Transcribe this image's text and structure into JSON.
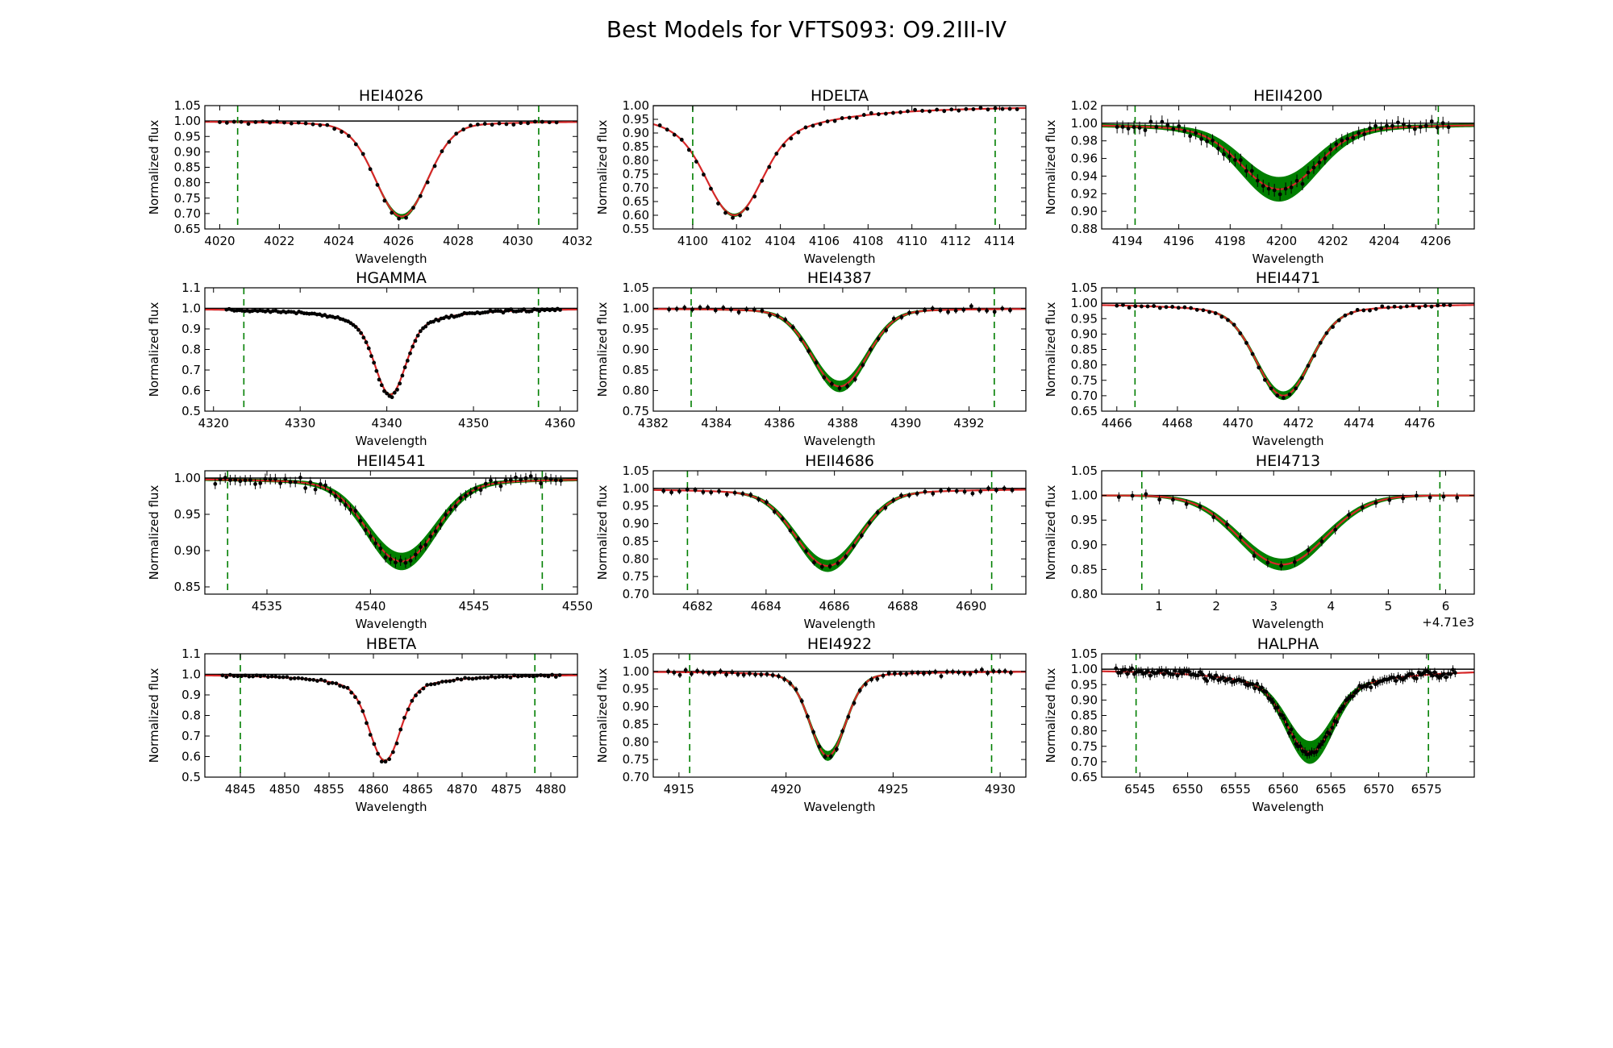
{
  "figure": {
    "title": "Best Models for VFTS093: O9.2III-IV"
  },
  "colors": {
    "model": "#d62728",
    "band": "#007f00",
    "obs": "#000000",
    "window": "#007f00",
    "continuum": "#000000"
  },
  "chart_data": [
    {
      "type": "line",
      "title": "HEI4026",
      "xlabel": "Wavelength",
      "ylabel": "Normalized flux",
      "xlim": [
        4019.5,
        4032
      ],
      "ylim": [
        0.65,
        1.05
      ],
      "xticks": [
        4020,
        4022,
        4024,
        4026,
        4028,
        4030,
        4032
      ],
      "yticks": [
        0.65,
        0.7,
        0.75,
        0.8,
        0.85,
        0.9,
        0.95,
        1.0,
        1.05
      ],
      "ytick_decimals": 2,
      "line_center": 4026.1,
      "depth": 0.31,
      "wing_depth": 0.02,
      "width": 0.85,
      "band_halfwidth": 0.006,
      "window": [
        4020.6,
        4030.7
      ],
      "obs_range": [
        4020,
        4031.3
      ],
      "n_obs": 48,
      "noise": 0.005
    },
    {
      "type": "line",
      "title": "HDELTA",
      "xlabel": "Wavelength",
      "ylabel": "Normalized flux",
      "xlim": [
        4098.2,
        4115.2
      ],
      "ylim": [
        0.55,
        1.0
      ],
      "xticks": [
        4100,
        4102,
        4104,
        4106,
        4108,
        4110,
        4112,
        4114
      ],
      "yticks": [
        0.55,
        0.6,
        0.65,
        0.7,
        0.75,
        0.8,
        0.85,
        0.9,
        0.95,
        1.0
      ],
      "ytick_decimals": 2,
      "line_center": 4101.9,
      "depth": 0.4,
      "wing_depth": 0.15,
      "width": 1.1,
      "band_halfwidth": 0.004,
      "window": [
        4100.0,
        4113.8
      ],
      "obs_range": [
        4098.5,
        4114.8
      ],
      "n_obs": 50,
      "noise": 0.006
    },
    {
      "type": "line",
      "title": "HEII4200",
      "xlabel": "Wavelength",
      "ylabel": "Normalized flux",
      "xlim": [
        4193,
        4207.5
      ],
      "ylim": [
        0.88,
        1.02
      ],
      "xticks": [
        4194,
        4196,
        4198,
        4200,
        4202,
        4204,
        4206
      ],
      "yticks": [
        0.88,
        0.9,
        0.92,
        0.94,
        0.96,
        0.98,
        1.0,
        1.02
      ],
      "ytick_decimals": 2,
      "line_center": 4199.9,
      "depth": 0.075,
      "wing_depth": 0.01,
      "width": 1.4,
      "band_halfwidth": 0.012,
      "window": [
        4194.3,
        4206.1
      ],
      "obs_range": [
        4193.6,
        4206.5
      ],
      "n_obs": 60,
      "noise": 0.006
    },
    {
      "type": "line",
      "title": "HGAMMA",
      "xlabel": "Wavelength",
      "ylabel": "Normalized flux",
      "xlim": [
        4319,
        4362
      ],
      "ylim": [
        0.5,
        1.1
      ],
      "xticks": [
        4320,
        4330,
        4340,
        4350,
        4360
      ],
      "yticks": [
        0.5,
        0.6,
        0.7,
        0.8,
        0.9,
        1.0,
        1.1
      ],
      "ytick_decimals": 1,
      "line_center": 4340.4,
      "depth": 0.42,
      "wing_depth": 0.12,
      "width": 1.6,
      "band_halfwidth": 0.004,
      "window": [
        4323.5,
        4357.5
      ],
      "obs_range": [
        4321.5,
        4360
      ],
      "n_obs": 130,
      "noise": 0.006
    },
    {
      "type": "line",
      "title": "HEI4387",
      "xlabel": "Wavelength",
      "ylabel": "Normalized flux",
      "xlim": [
        4382,
        4393.8
      ],
      "ylim": [
        0.75,
        1.05
      ],
      "xticks": [
        4382,
        4384,
        4386,
        4388,
        4390,
        4392
      ],
      "yticks": [
        0.75,
        0.8,
        0.85,
        0.9,
        0.95,
        1.0,
        1.05
      ],
      "ytick_decimals": 2,
      "line_center": 4387.9,
      "depth": 0.19,
      "wing_depth": 0.01,
      "width": 0.85,
      "band_halfwidth": 0.012,
      "window": [
        4383.2,
        4392.8
      ],
      "obs_range": [
        4382.5,
        4393.3
      ],
      "n_obs": 45,
      "noise": 0.006
    },
    {
      "type": "line",
      "title": "HEI4471",
      "xlabel": "Wavelength",
      "ylabel": "Normalized flux",
      "xlim": [
        4465.5,
        4477.8
      ],
      "ylim": [
        0.65,
        1.05
      ],
      "xticks": [
        4466,
        4468,
        4470,
        4472,
        4474,
        4476
      ],
      "yticks": [
        0.65,
        0.7,
        0.75,
        0.8,
        0.85,
        0.9,
        0.95,
        1.0,
        1.05
      ],
      "ytick_decimals": 2,
      "line_center": 4471.5,
      "depth": 0.3,
      "wing_depth": 0.04,
      "width": 0.85,
      "band_halfwidth": 0.012,
      "window": [
        4466.6,
        4476.6
      ],
      "obs_range": [
        4466,
        4477
      ],
      "n_obs": 55,
      "noise": 0.005
    },
    {
      "type": "line",
      "title": "HEII4541",
      "xlabel": "Wavelength",
      "ylabel": "Normalized flux",
      "xlim": [
        4532,
        4550
      ],
      "ylim": [
        0.84,
        1.01
      ],
      "xticks": [
        4535,
        4540,
        4545,
        4550
      ],
      "yticks": [
        0.85,
        0.9,
        0.95,
        1.0
      ],
      "ytick_decimals": 2,
      "line_center": 4541.5,
      "depth": 0.115,
      "wing_depth": 0.01,
      "width": 1.6,
      "band_halfwidth": 0.01,
      "window": [
        4533.1,
        4548.3
      ],
      "obs_range": [
        4532.5,
        4549.2
      ],
      "n_obs": 70,
      "noise": 0.006
    },
    {
      "type": "line",
      "title": "HEII4686",
      "xlabel": "Wavelength",
      "ylabel": "Normalized flux",
      "xlim": [
        4680.7,
        4691.6
      ],
      "ylim": [
        0.7,
        1.05
      ],
      "xticks": [
        4682,
        4684,
        4686,
        4688,
        4690
      ],
      "yticks": [
        0.7,
        0.75,
        0.8,
        0.85,
        0.9,
        0.95,
        1.0,
        1.05
      ],
      "ytick_decimals": 2,
      "line_center": 4685.8,
      "depth": 0.22,
      "wing_depth": 0.02,
      "width": 0.9,
      "band_halfwidth": 0.015,
      "window": [
        4681.7,
        4690.6
      ],
      "obs_range": [
        4681,
        4691.2
      ],
      "n_obs": 45,
      "noise": 0.007
    },
    {
      "type": "line",
      "title": "HEI4713",
      "xlabel": "Wavelength",
      "ylabel": "Normalized flux",
      "xlim": [
        0.0,
        6.5
      ],
      "ylim": [
        0.8,
        1.05
      ],
      "xticks": [
        1,
        2,
        3,
        4,
        5,
        6
      ],
      "xtick_labels": [
        "1",
        "2",
        "3",
        "4",
        "5",
        "6"
      ],
      "x_offset_label": "+4.71e3",
      "yticks": [
        0.8,
        0.85,
        0.9,
        0.95,
        1.0,
        1.05
      ],
      "ytick_decimals": 2,
      "line_center": 3.15,
      "depth": 0.14,
      "wing_depth": 0.0,
      "width": 0.75,
      "band_halfwidth": 0.01,
      "window": [
        0.7,
        5.9
      ],
      "obs_range": [
        0.3,
        6.2
      ],
      "n_obs": 26,
      "noise": 0.008
    },
    {
      "type": "line",
      "title": "HBETA",
      "xlabel": "Wavelength",
      "ylabel": "Normalized flux",
      "xlim": [
        4841,
        4883
      ],
      "ylim": [
        0.5,
        1.1
      ],
      "xticks": [
        4845,
        4850,
        4855,
        4860,
        4865,
        4870,
        4875,
        4880
      ],
      "yticks": [
        0.5,
        0.6,
        0.7,
        0.8,
        0.9,
        1.0,
        1.1
      ],
      "ytick_decimals": 1,
      "line_center": 4861.3,
      "depth": 0.42,
      "wing_depth": 0.1,
      "width": 1.6,
      "band_halfwidth": 0.004,
      "window": [
        4845.0,
        4878.2
      ],
      "obs_range": [
        4843,
        4881
      ],
      "n_obs": 90,
      "noise": 0.006
    },
    {
      "type": "line",
      "title": "HEI4922",
      "xlabel": "Wavelength",
      "ylabel": "Normalized flux",
      "xlim": [
        4913.8,
        4931.2
      ],
      "ylim": [
        0.7,
        1.05
      ],
      "xticks": [
        4915,
        4920,
        4925,
        4930
      ],
      "yticks": [
        0.7,
        0.75,
        0.8,
        0.85,
        0.9,
        0.95,
        1.0,
        1.05
      ],
      "ytick_decimals": 2,
      "line_center": 4921.95,
      "depth": 0.24,
      "wing_depth": 0.02,
      "width": 0.8,
      "band_halfwidth": 0.012,
      "window": [
        4915.5,
        4929.6
      ],
      "obs_range": [
        4914.5,
        4930.5
      ],
      "n_obs": 60,
      "noise": 0.007
    },
    {
      "type": "line",
      "title": "HALPHA",
      "xlabel": "Wavelength",
      "ylabel": "Normalized flux",
      "xlim": [
        6541,
        6580
      ],
      "ylim": [
        0.65,
        1.05
      ],
      "xticks": [
        6545,
        6550,
        6555,
        6560,
        6565,
        6570,
        6575
      ],
      "yticks": [
        0.65,
        0.7,
        0.75,
        0.8,
        0.85,
        0.9,
        0.95,
        1.0,
        1.05
      ],
      "ytick_decimals": 2,
      "line_center": 6562.8,
      "depth": 0.27,
      "wing_depth": 0.08,
      "width": 2.2,
      "band_halfwidth": 0.035,
      "window": [
        6544.6,
        6575.2
      ],
      "obs_range": [
        6542.5,
        6578
      ],
      "n_obs": 150,
      "noise": 0.012
    }
  ]
}
